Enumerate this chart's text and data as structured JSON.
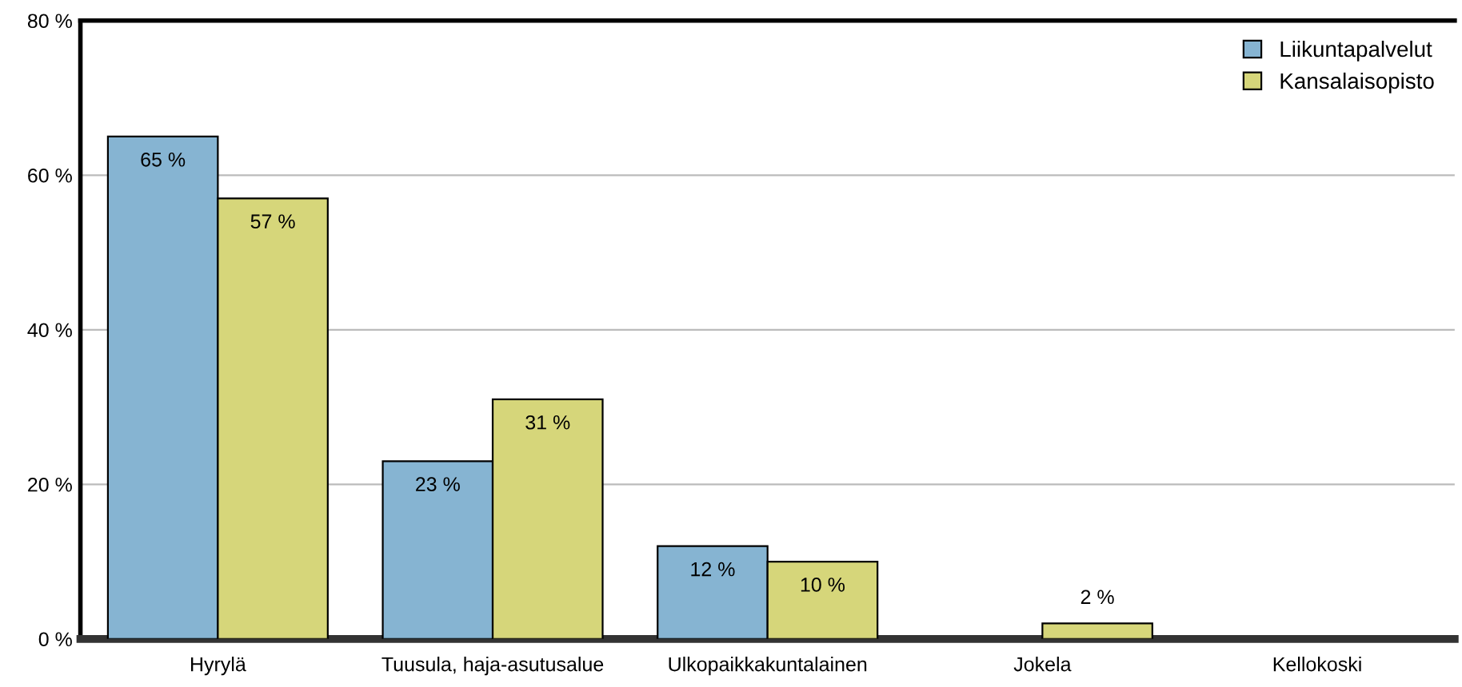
{
  "chart_data": {
    "type": "bar",
    "categories": [
      "Hyrylä",
      "Tuusula, haja-asutusalue",
      "Ulkopaikkakuntalainen",
      "Jokela",
      "Kellokoski"
    ],
    "series": [
      {
        "name": "Liikuntapalvelut",
        "color": "#86b4d2",
        "values": [
          65,
          23,
          12,
          0,
          0
        ],
        "value_labels": [
          "65 %",
          "23 %",
          "12 %",
          null,
          null
        ]
      },
      {
        "name": "Kansalaisopisto",
        "color": "#d6d67a",
        "values": [
          57,
          31,
          10,
          2,
          0
        ],
        "value_labels": [
          "57 %",
          "31 %",
          "10 %",
          "2 %",
          null
        ]
      }
    ],
    "ylim": [
      0,
      80
    ],
    "yticks": [
      {
        "value": 0,
        "label": "0 %"
      },
      {
        "value": 20,
        "label": "20 %"
      },
      {
        "value": 40,
        "label": "40 %"
      },
      {
        "value": 60,
        "label": "60 %"
      },
      {
        "value": 80,
        "label": "80 %"
      }
    ],
    "grid": "y",
    "legend": "top right"
  }
}
